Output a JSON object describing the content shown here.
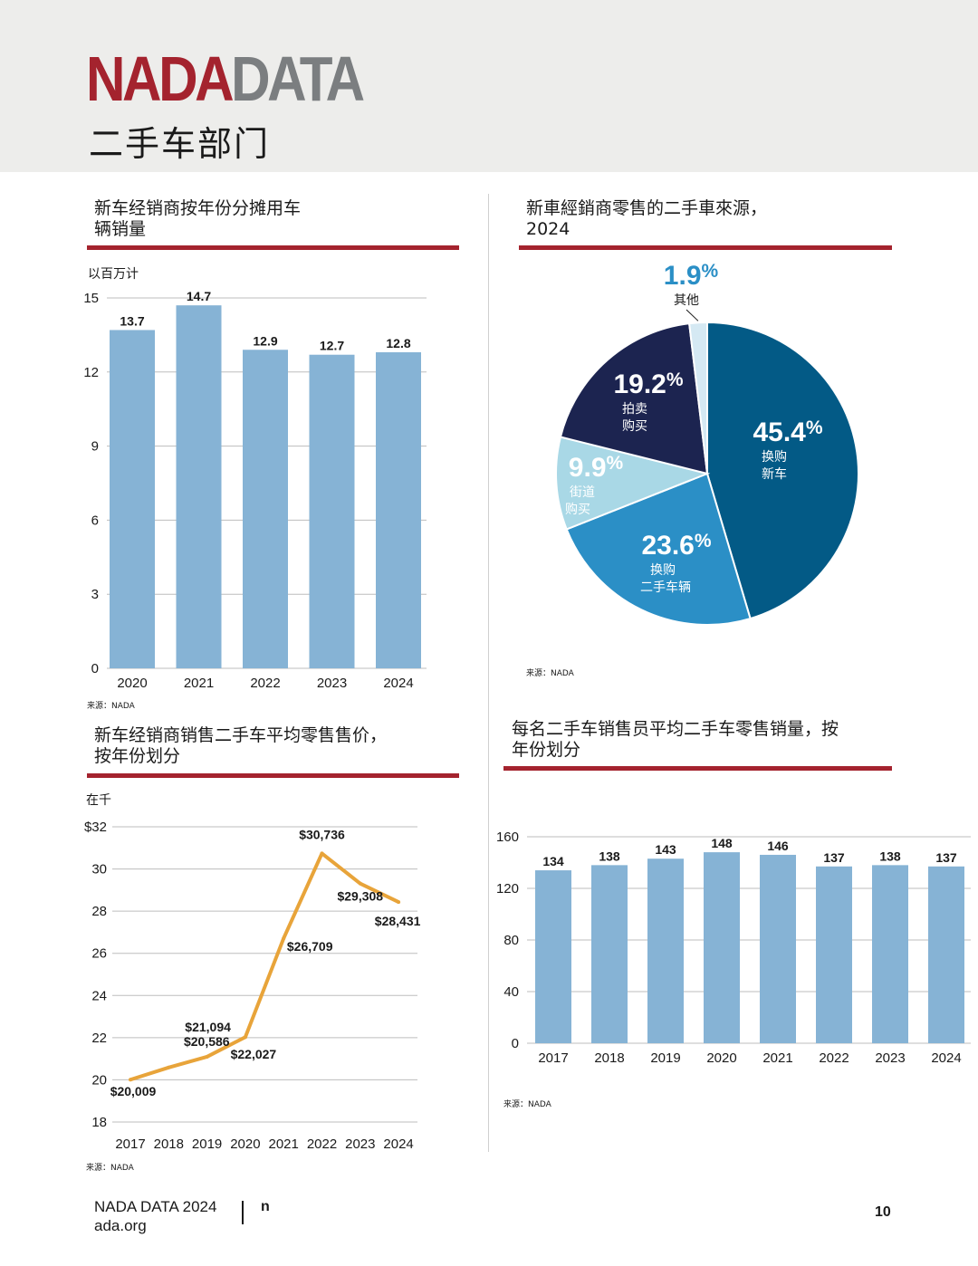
{
  "header": {
    "brand_part1": "NADA",
    "brand_part2": "DATA",
    "subtitle": "二手车部门"
  },
  "colors": {
    "brand_red": "#a4232e",
    "brand_gray": "#7b7e80",
    "bar_blue": "#86b3d5",
    "line_orange": "#e8a43a"
  },
  "chart_data": [
    {
      "type": "bar",
      "title_line1": "新车经销商按年份分摊用车",
      "title_line2": "辆销量",
      "unit": "以百万计",
      "categories": [
        "2020",
        "2021",
        "2022",
        "2023",
        "2024"
      ],
      "values": [
        13.7,
        14.7,
        12.9,
        12.7,
        12.8
      ],
      "value_labels": [
        "13.7",
        "14.7",
        "12.9",
        "12.7",
        "12.8"
      ],
      "ylim": [
        0,
        15
      ],
      "yticks": [
        "0",
        "3",
        "6",
        "9",
        "12",
        "15"
      ],
      "grid": true,
      "source": "来源：NADA"
    },
    {
      "type": "pie",
      "title_line1": "新車經銷商零售的二手車來源，",
      "title_line2": "2024",
      "slices": [
        {
          "value": 45.4,
          "pct": "45.4",
          "label_line1": "换购",
          "label_line2": "新车",
          "color": "#035a86"
        },
        {
          "value": 23.6,
          "pct": "23.6",
          "label_line1": "换购",
          "label_line2": "二手车辆",
          "color": "#2b8fc6"
        },
        {
          "value": 9.9,
          "pct": "9.9",
          "label_line1": "街道",
          "label_line2": "购买",
          "color": "#a9d8e6"
        },
        {
          "value": 19.2,
          "pct": "19.2",
          "label_line1": "拍卖",
          "label_line2": "购买",
          "color": "#1c2450"
        },
        {
          "value": 1.9,
          "pct": "1.9",
          "label_line1": "其他",
          "label_line2": "",
          "color": "#d5e9f3"
        }
      ],
      "pct_suffix": "%",
      "source": "来源：NADA"
    },
    {
      "type": "line",
      "title_line1": "新车经销商销售二手车平均零售售价，",
      "title_line2": "按年份划分",
      "unit": "在千",
      "x": [
        "2017",
        "2018",
        "2019",
        "2020",
        "2021",
        "2022",
        "2023",
        "2024"
      ],
      "values": [
        20009,
        20586,
        21094,
        22027,
        26709,
        30736,
        29308,
        28431
      ],
      "value_labels": [
        "$20,009",
        "$20,586",
        "$21,094",
        "$22,027",
        "$26,709",
        "$30,736",
        "$29,308",
        "$28,431"
      ],
      "ylim": [
        18000,
        32000
      ],
      "yticks": [
        "18",
        "20",
        "22",
        "24",
        "26",
        "28",
        "30",
        "$32"
      ],
      "grid": true,
      "source": "来源：NADA"
    },
    {
      "type": "bar",
      "title_line1": "每名二手车销售员平均二手车零售销量，按",
      "title_line2": "年份划分",
      "categories": [
        "2017",
        "2018",
        "2019",
        "2020",
        "2021",
        "2022",
        "2023",
        "2024"
      ],
      "values": [
        134,
        138,
        143,
        148,
        146,
        137,
        138,
        137
      ],
      "value_labels": [
        "134",
        "138",
        "143",
        "148",
        "146",
        "137",
        "138",
        "137"
      ],
      "ylim": [
        0,
        160
      ],
      "yticks": [
        "0",
        "40",
        "80",
        "120",
        "160"
      ],
      "grid": true,
      "source": "来源：NADA"
    }
  ],
  "footer": {
    "line1": "NADA DATA 2024",
    "line2": "ada.org",
    "letter": "n",
    "page_number": "10"
  }
}
